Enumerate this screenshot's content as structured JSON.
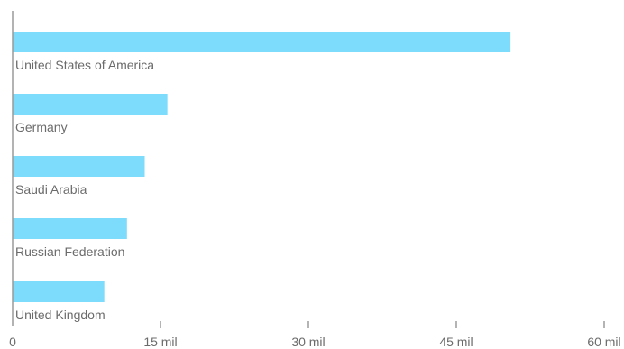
{
  "chart_data": {
    "type": "bar",
    "orientation": "horizontal",
    "categories": [
      "United States of America",
      "Germany",
      "Saudi Arabia",
      "Russian Federation",
      "United Kingdom"
    ],
    "values": [
      50.5,
      15.7,
      13.4,
      11.6,
      9.3
    ],
    "highlighted_category": "Russian Federation",
    "x_ticks": [
      0,
      15,
      30,
      45,
      60
    ],
    "x_tick_labels": [
      "0",
      "15 mil",
      "30 mil",
      "45 mil",
      "60 mil"
    ],
    "xlim": [
      0,
      60
    ],
    "grid": false,
    "legend": "none",
    "colors": {
      "bar": "#7ddcfb",
      "label": "#6b6b6b",
      "highlight_label": "#61cdf2",
      "axis": "#9a9a9a"
    }
  }
}
